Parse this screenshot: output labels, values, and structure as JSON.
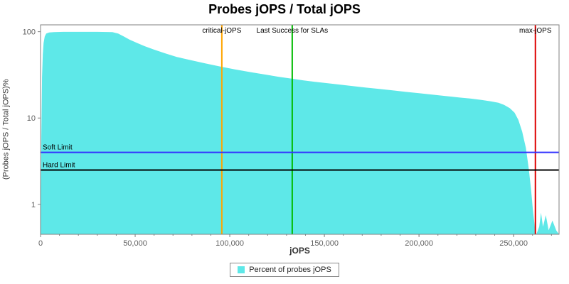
{
  "legend": {
    "label": "Percent of probes jOPS"
  },
  "chart_data": {
    "type": "area",
    "title": "Probes jOPS / Total jOPS",
    "xlabel": "jOPS",
    "ylabel": "(Probes jOPS / Total jOPS)%",
    "x_axis": {
      "min": 0,
      "max": 274000,
      "minor_step": 10000,
      "ticks": [
        {
          "value": 0,
          "label": "0"
        },
        {
          "value": 50000,
          "label": "50,000"
        },
        {
          "value": 100000,
          "label": "100,000"
        },
        {
          "value": 150000,
          "label": "150,000"
        },
        {
          "value": 200000,
          "label": "200,000"
        },
        {
          "value": 250000,
          "label": "250,000"
        }
      ]
    },
    "y_axis": {
      "scale": "log",
      "min": 0.45,
      "max": 120,
      "ticks": [
        {
          "value": 1,
          "label": "1"
        },
        {
          "value": 10,
          "label": "10"
        },
        {
          "value": 100,
          "label": "100"
        }
      ]
    },
    "series": [
      {
        "name": "Percent of probes jOPS",
        "color": "#5EE8E8",
        "points": [
          [
            0,
            0.45
          ],
          [
            400,
            6
          ],
          [
            800,
            30
          ],
          [
            1200,
            55
          ],
          [
            1600,
            74
          ],
          [
            2200,
            88
          ],
          [
            3000,
            95
          ],
          [
            4500,
            98
          ],
          [
            7000,
            99
          ],
          [
            12000,
            99.5
          ],
          [
            20000,
            99.5
          ],
          [
            30000,
            99.4
          ],
          [
            38000,
            99
          ],
          [
            41000,
            95
          ],
          [
            44000,
            88
          ],
          [
            47000,
            81
          ],
          [
            51000,
            74
          ],
          [
            55000,
            68
          ],
          [
            60000,
            62
          ],
          [
            66000,
            56
          ],
          [
            72000,
            51
          ],
          [
            79000,
            47
          ],
          [
            87000,
            43
          ],
          [
            95000,
            39.5
          ],
          [
            103000,
            36.5
          ],
          [
            111000,
            34
          ],
          [
            119000,
            31.8
          ],
          [
            126000,
            30
          ],
          [
            133000,
            28.5
          ],
          [
            139000,
            27.3
          ],
          [
            145000,
            26.3
          ],
          [
            151000,
            25.4
          ],
          [
            158000,
            24.4
          ],
          [
            165000,
            23.4
          ],
          [
            172000,
            22.5
          ],
          [
            179000,
            21.7
          ],
          [
            186000,
            20.9
          ],
          [
            193000,
            20.1
          ],
          [
            200000,
            19.4
          ],
          [
            207000,
            18.7
          ],
          [
            214000,
            18
          ],
          [
            221000,
            17.3
          ],
          [
            227000,
            16.8
          ],
          [
            233000,
            16.2
          ],
          [
            238000,
            15.6
          ],
          [
            242000,
            15
          ],
          [
            245000,
            14.2
          ],
          [
            248000,
            13
          ],
          [
            250500,
            11.5
          ],
          [
            252500,
            9.5
          ],
          [
            254500,
            7
          ],
          [
            256500,
            4.5
          ],
          [
            258000,
            2.6
          ],
          [
            259200,
            1.5
          ],
          [
            260200,
            0.85
          ],
          [
            261200,
            0.55
          ],
          [
            262000,
            0.45
          ],
          [
            263500,
            0.55
          ],
          [
            264500,
            0.8
          ],
          [
            265500,
            0.55
          ],
          [
            267000,
            0.75
          ],
          [
            268500,
            0.5
          ],
          [
            270500,
            0.65
          ],
          [
            272500,
            0.5
          ],
          [
            274000,
            0.45
          ]
        ]
      }
    ],
    "vertical_markers": [
      {
        "label": "critical-jOPS",
        "x": 95800,
        "color": "#FFA500"
      },
      {
        "label": "Last Success for SLAs",
        "x": 133000,
        "color": "#00BB00"
      },
      {
        "label": "max-jOPS",
        "x": 261500,
        "color": "#DD0000"
      }
    ],
    "horizontal_markers": [
      {
        "label": "Soft Limit",
        "y": 4,
        "color": "#3333FF"
      },
      {
        "label": "Hard Limit",
        "y": 2.5,
        "color": "#000000"
      }
    ]
  }
}
